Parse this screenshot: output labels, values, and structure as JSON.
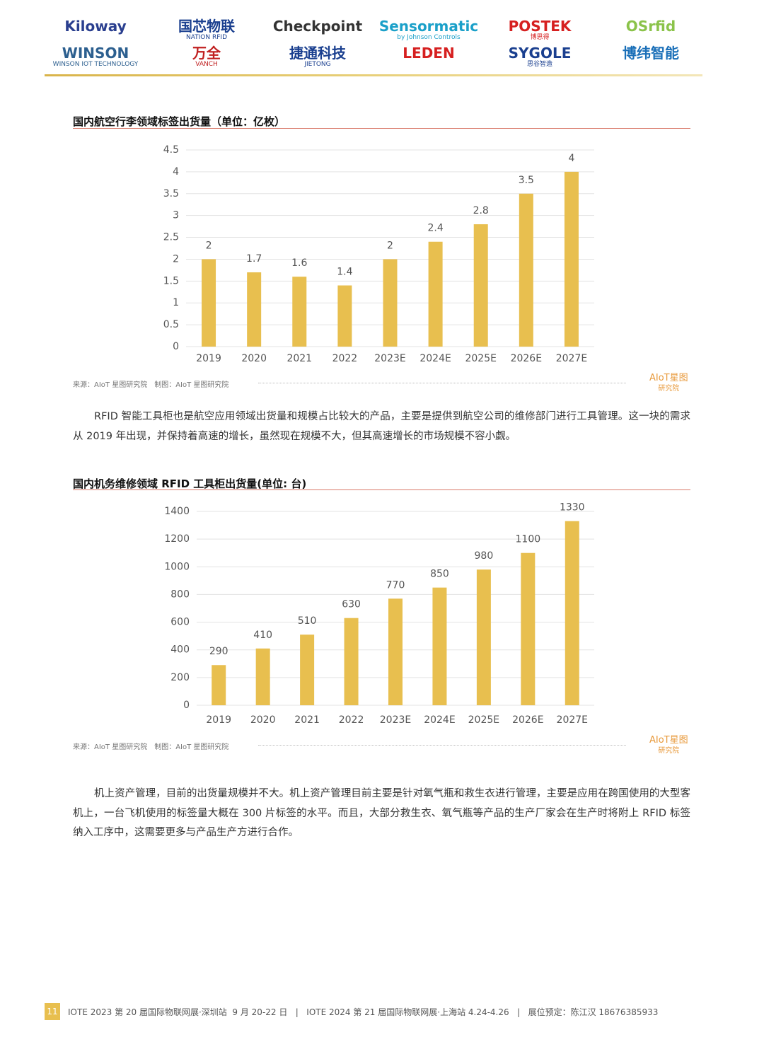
{
  "header": {
    "logos": [
      {
        "text": "Kiloway"
      },
      {
        "text": "国芯物联",
        "sub": "NATION RFID"
      },
      {
        "text": "Checkpoint"
      },
      {
        "text": "Sensormatic",
        "sub": "by Johnson Controls"
      },
      {
        "text": "POSTEK",
        "sub": "博思得"
      },
      {
        "text": "OSrfid"
      },
      {
        "text": "WINSON",
        "sub": "WINSON IOT TECHNOLOGY"
      },
      {
        "text": "万全",
        "sub": "VANCH"
      },
      {
        "text": "捷通科技",
        "sub": "JIETONG"
      },
      {
        "text": "LEDEN"
      },
      {
        "text": "SYGOLE",
        "sub": "思谷智造"
      },
      {
        "text": "博纬智能"
      }
    ]
  },
  "chart_data": [
    {
      "type": "bar",
      "title": "国内航空行李领域标签出货量（单位：亿枚）",
      "categories": [
        "2019",
        "2020",
        "2021",
        "2022",
        "2023E",
        "2024E",
        "2025E",
        "2026E",
        "2027E"
      ],
      "values": [
        2,
        1.7,
        1.6,
        1.4,
        2,
        2.4,
        2.8,
        3.5,
        4
      ],
      "color": "#e8bf4f",
      "ylim": [
        0,
        4.5
      ],
      "yticks": [
        0,
        0.5,
        1,
        1.5,
        2,
        2.5,
        3,
        3.5,
        4,
        4.5
      ],
      "grid": true,
      "source": "来源：AIoT 星图研究院　制图：AIoT 星图研究院",
      "brand": "AIoT星图",
      "brand_sub": "研究院"
    },
    {
      "type": "bar",
      "title": "国内机务维修领域 RFID 工具柜出货量(单位: 台)",
      "categories": [
        "2019",
        "2020",
        "2021",
        "2022",
        "2023E",
        "2024E",
        "2025E",
        "2026E",
        "2027E"
      ],
      "values": [
        290,
        410,
        510,
        630,
        770,
        850,
        980,
        1100,
        1330
      ],
      "color": "#e8bf4f",
      "ylim": [
        0,
        1400
      ],
      "yticks": [
        0,
        200,
        400,
        600,
        800,
        1000,
        1200,
        1400
      ],
      "grid": true,
      "source": "来源：AIoT 星图研究院　制图：AIoT 星图研究院",
      "brand": "AIoT星图",
      "brand_sub": "研究院"
    }
  ],
  "paragraphs": [
    "RFID 智能工具柜也是航空应用领域出货量和规模占比较大的产品，主要是提供到航空公司的维修部门进行工具管理。这一块的需求从 2019 年出现，并保持着高速的增长，虽然现在规模不大，但其高速增长的市场规模不容小觑。",
    "机上资产管理，目前的出货量规模并不大。机上资产管理目前主要是针对氧气瓶和救生衣进行管理，主要是应用在跨国使用的大型客机上，一台飞机使用的标签量大概在 300 片标签的水平。而且，大部分救生衣、氧气瓶等产品的生产厂家会在生产时将附上 RFID 标签纳入工序中，这需要更多与产品生产方进行合作。"
  ],
  "footer": {
    "page": "11",
    "text": "IOTE 2023 第 20 届国际物联网展·深圳站  9 月 20-22 日   |   IOTE 2024 第 21 届国际物联网展·上海站 4.24-4.26   |   展位预定：陈江汉 18676385933"
  }
}
